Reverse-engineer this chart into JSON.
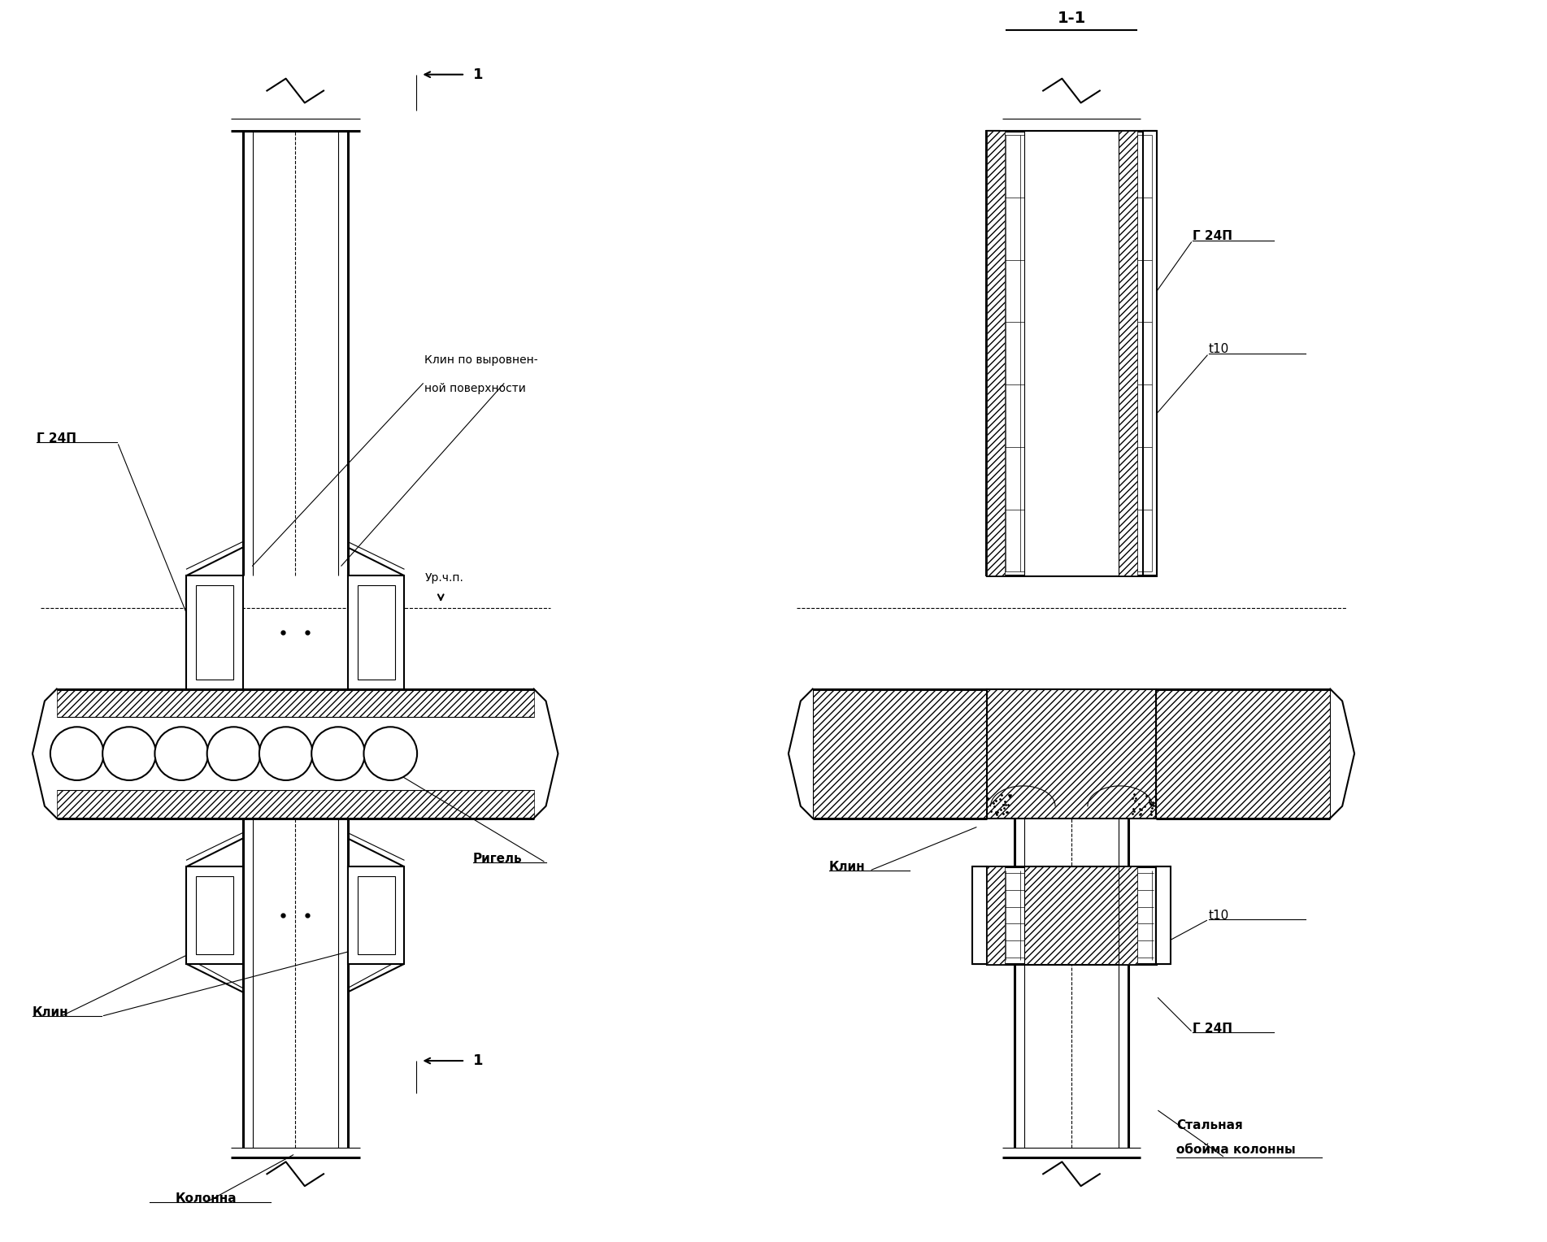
{
  "bg_color": "#ffffff",
  "line_color": "#000000",
  "fig_width": 19.03,
  "fig_height": 15.28,
  "label_1_1": "1-1",
  "label_1": "1",
  "label_G24P_left": "Г 24П",
  "label_G24P_right_top": "Г 24П",
  "label_G24P_right_bot": "Г 24П",
  "label_t10_top": "t10",
  "label_t10_bot": "t10",
  "label_klin_title_line1": "Клин по выровнен-",
  "label_klin_title_line2": "ной поверхности",
  "label_ur": "Ур.ч.п.",
  "label_rigel": "Ригель",
  "label_klin_left": "Клин",
  "label_klin_right": "Клин",
  "label_kolonna": "Колонна",
  "label_steel_casing_1": "Стальная",
  "label_steel_casing_2": "обойма колонны"
}
